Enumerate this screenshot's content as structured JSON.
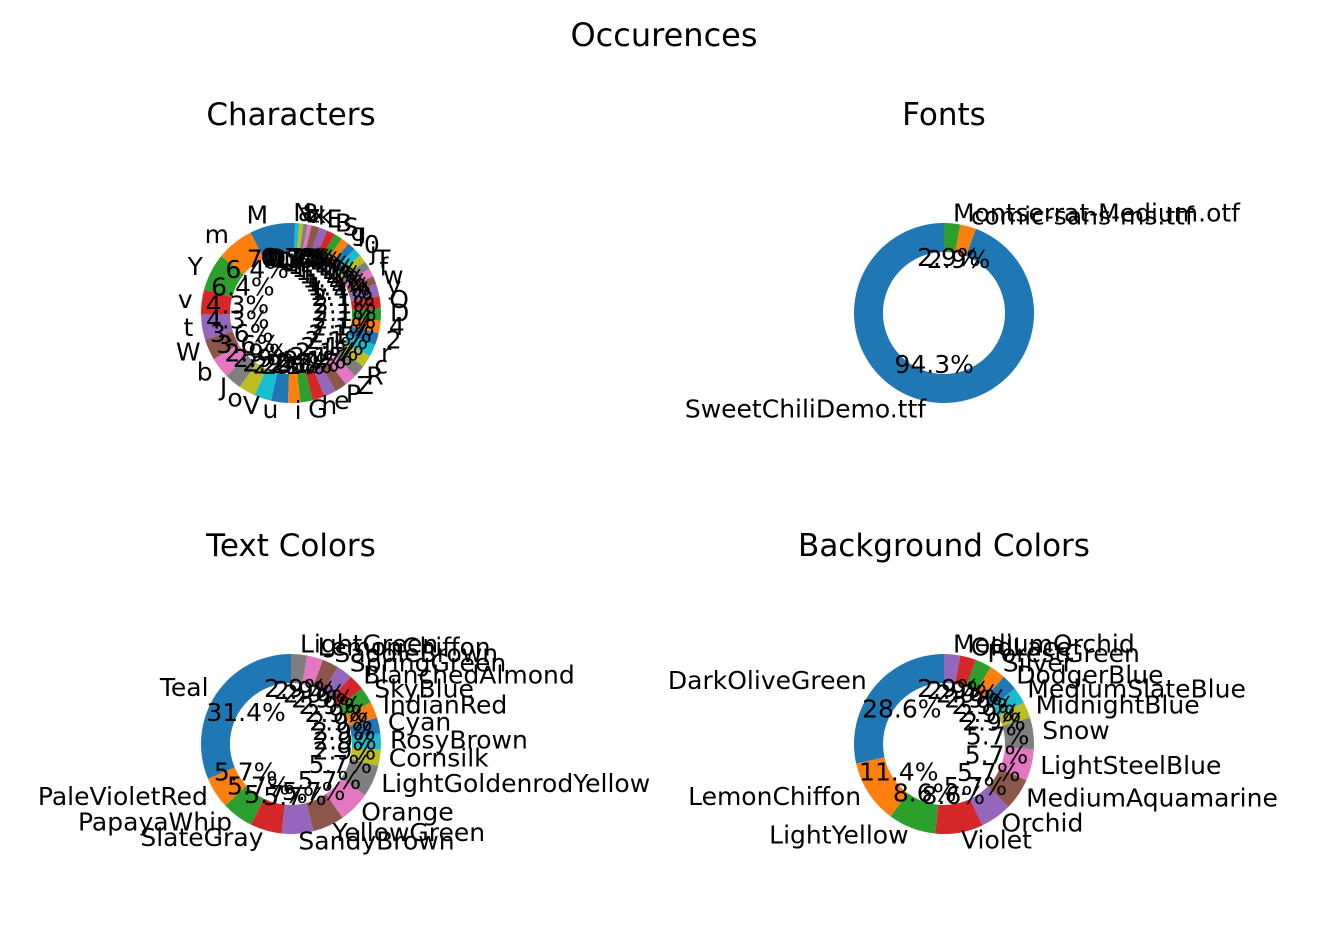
{
  "figure_title": "Occurences",
  "chart_data": [
    {
      "type": "pie",
      "style": "donut",
      "title": "Characters",
      "labels": [
        "M",
        "m",
        "Y",
        "v",
        "t",
        "W",
        "b",
        "J",
        "o",
        "V",
        "u",
        "i",
        "G",
        "h",
        "e",
        "P",
        "Z",
        "R",
        "c",
        "r",
        "2",
        "4",
        "D",
        "O",
        "y",
        "w",
        "f",
        "T",
        "j",
        "0",
        "l",
        "g",
        "S",
        "B",
        "E",
        "k",
        "x",
        "z",
        "8",
        "a",
        "N"
      ],
      "values": [
        7.1,
        6.4,
        6.4,
        4.3,
        4.3,
        3.6,
        3.6,
        2.9,
        2.9,
        2.9,
        2.9,
        2.1,
        2.1,
        2.1,
        2.1,
        2.1,
        2.1,
        2.1,
        2.1,
        2.1,
        2.1,
        2.1,
        2.1,
        2.1,
        2.1,
        1.4,
        1.4,
        1.4,
        1.4,
        1.4,
        1.4,
        1.4,
        1.4,
        1.4,
        1.4,
        1.4,
        0.7,
        0.7,
        0.7,
        0.7,
        0.7
      ],
      "pct_labels": [
        "7.1%",
        "6.4%",
        "6.4%",
        "4.3%",
        "4.3%",
        "3.6%",
        "3.6%",
        "2.9%",
        "2.9%",
        "2.9%",
        "2.9%",
        "2.1%",
        "2.1%",
        "2.1%",
        "2.1%",
        "2.1%",
        "2.1%",
        "2.1%",
        "2.1%",
        "2.1%",
        "2.1%",
        "2.1%",
        "2.1%",
        "2.1%",
        "2.1%",
        "1.4%",
        "1.4%",
        "1.4%",
        "1.4%",
        "1.4%",
        "1.4%",
        "1.4%",
        "1.4%",
        "1.4%",
        "1.4%",
        "1.4%",
        "0.7%",
        "0.7%",
        "0.7%",
        "0.7%",
        "0.7%"
      ]
    },
    {
      "type": "pie",
      "style": "donut",
      "title": "Fonts",
      "labels": [
        "SweetChiliDemo.ttf",
        "comic-sans-ms.ttf",
        "Montserrat-Medium.otf"
      ],
      "values": [
        94.3,
        2.9,
        2.9
      ],
      "pct_labels": [
        "94.3%",
        "2.9%",
        "2.9%"
      ]
    },
    {
      "type": "pie",
      "style": "donut",
      "title": "Text Colors",
      "labels": [
        "Teal",
        "PaleVioletRed",
        "PapayaWhip",
        "SlateGray",
        "SandyBrown",
        "YellowGreen",
        "Orange",
        "LightGoldenrodYellow",
        "Cornsilk",
        "RosyBrown",
        "Cyan",
        "IndianRed",
        "SkyBlue",
        "BlanchedAlmond",
        "SpringGreen",
        "SaddleBrown",
        "LemonChiffon",
        "LightGreen"
      ],
      "values": [
        31.4,
        5.7,
        5.7,
        5.7,
        5.7,
        5.7,
        5.7,
        5.7,
        2.9,
        2.9,
        2.9,
        2.9,
        2.9,
        2.9,
        2.9,
        2.9,
        2.9,
        2.9
      ],
      "pct_labels": [
        "31.4%",
        "5.7%",
        "5.7%",
        "5.7%",
        "5.7%",
        "5.7%",
        "5.7%",
        "5.7%",
        "2.9%",
        "2.9%",
        "2.9%",
        "2.9%",
        "2.9%",
        "2.9%",
        "2.9%",
        "2.9%",
        "2.9%",
        "2.9%"
      ]
    },
    {
      "type": "pie",
      "style": "donut",
      "title": "Background Colors",
      "labels": [
        "DarkOliveGreen",
        "LemonChiffon",
        "LightYellow",
        "Violet",
        "Orchid",
        "MediumAquamarine",
        "LightSteelBlue",
        "Snow",
        "MidnightBlue",
        "MediumSlateBlue",
        "DodgerBlue",
        "Silver",
        "ForestGreen",
        "OldLace",
        "MediumOrchid"
      ],
      "values": [
        28.6,
        11.4,
        8.6,
        8.6,
        5.7,
        5.7,
        5.7,
        5.7,
        2.9,
        2.9,
        2.9,
        2.9,
        2.9,
        2.9,
        2.9
      ],
      "pct_labels": [
        "28.6%",
        "11.4%",
        "8.6%",
        "8.6%",
        "5.7%",
        "5.7%",
        "5.7%",
        "5.7%",
        "2.9%",
        "2.9%",
        "2.9%",
        "2.9%",
        "2.9%",
        "2.9%",
        "2.9%"
      ]
    }
  ],
  "colors": [
    "#1f77b4",
    "#ff7f0e",
    "#2ca02c",
    "#d62728",
    "#9467bd",
    "#8c564b",
    "#e377c2",
    "#7f7f7f",
    "#bcbd22",
    "#17becf"
  ]
}
